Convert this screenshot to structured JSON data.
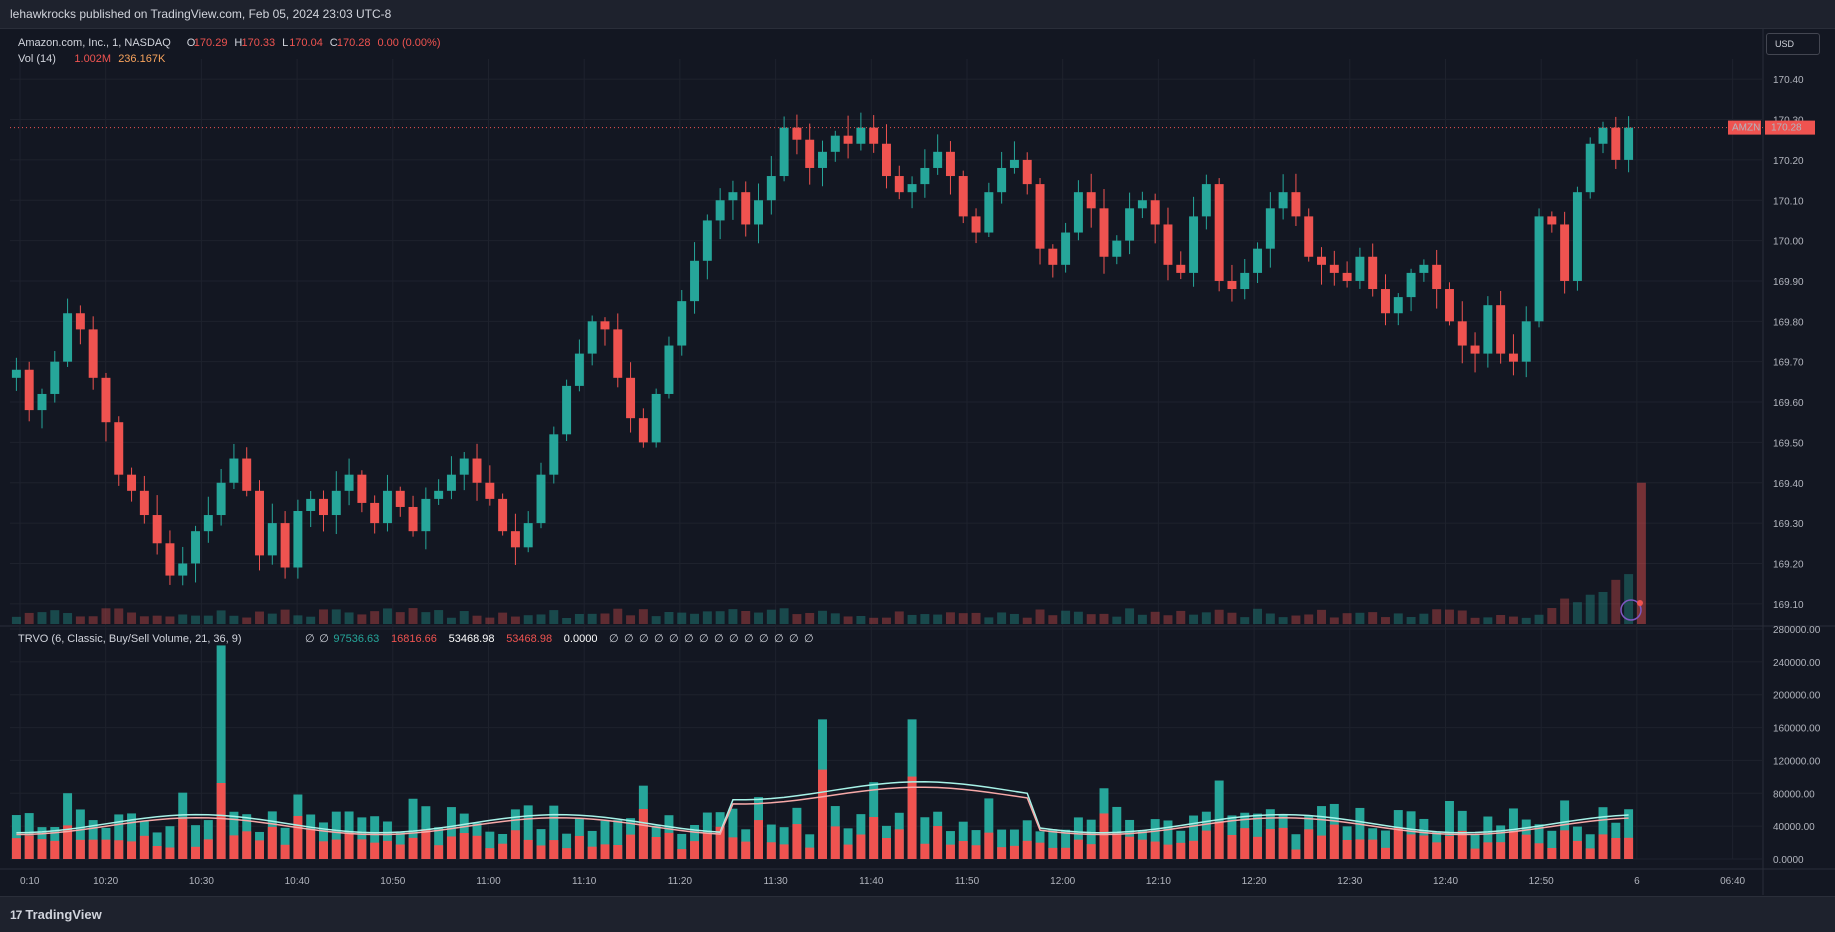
{
  "header": {
    "publish_line": "lehawkrocks published on TradingView.com, Feb 05, 2024 23:03 UTC-8"
  },
  "footer": {
    "brand": "TradingView",
    "logo": "tv-logo-icon"
  },
  "currency_button": "USD",
  "legend": {
    "symbol": "Amazon.com, Inc., 1, NASDAQ",
    "o_label": "O",
    "o_value": "170.29",
    "h_label": "H",
    "h_value": "170.33",
    "l_label": "L",
    "l_value": "170.04",
    "c_label": "C",
    "c_value": "170.28",
    "change": "0.00 (0.00%)",
    "vol_label": "Vol (14)",
    "vol_value": "1.002M",
    "vol_ma": "236.167K"
  },
  "trvo_legend": {
    "title": "TRVO (6, Classic, Buy/Sell Volume, 21, 36, 9)",
    "v1": "97536.63",
    "v2": "16816.66",
    "v3": "53468.98",
    "v4": "53468.98",
    "v5": "0.0000",
    "empty_glyph": "∅"
  },
  "price_badge": {
    "symbol": "AMZN",
    "price": "170.28"
  },
  "colors": {
    "up": "#26a69a",
    "down": "#ef5350",
    "bg": "#131722",
    "grid": "#1e222d",
    "text": "#b2b5be",
    "ma": "#f7a9a8",
    "ma2": "#a7f3e8"
  },
  "chart_data": [
    {
      "type": "candlestick",
      "title": "Amazon.com, Inc., 1, NASDAQ",
      "ylim": [
        169.05,
        170.45
      ],
      "y_ticks": [
        "170.40",
        "170.30",
        "170.20",
        "170.10",
        "170.00",
        "169.90",
        "169.80",
        "169.70",
        "169.60",
        "169.50",
        "169.40",
        "169.30",
        "169.20",
        "169.10"
      ],
      "x_ticks": [
        "0:10",
        "10:20",
        "10:30",
        "10:40",
        "10:50",
        "11:00",
        "11:10",
        "11:20",
        "11:30",
        "11:40",
        "11:50",
        "12:00",
        "12:10",
        "12:20",
        "12:30",
        "12:40",
        "12:50",
        "6",
        "06:40"
      ],
      "close_series": [
        169.68,
        169.58,
        169.62,
        169.7,
        169.82,
        169.78,
        169.66,
        169.55,
        169.42,
        169.38,
        169.32,
        169.25,
        169.17,
        169.2,
        169.28,
        169.32,
        169.4,
        169.46,
        169.38,
        169.22,
        169.3,
        169.19,
        169.33,
        169.36,
        169.32,
        169.38,
        169.42,
        169.35,
        169.3,
        169.38,
        169.34,
        169.28,
        169.36,
        169.38,
        169.42,
        169.46,
        169.4,
        169.36,
        169.28,
        169.24,
        169.3,
        169.42,
        169.52,
        169.64,
        169.72,
        169.8,
        169.78,
        169.66,
        169.56,
        169.5,
        169.62,
        169.74,
        169.85,
        169.95,
        170.05,
        170.1,
        170.12,
        170.04,
        170.1,
        170.16,
        170.28,
        170.25,
        170.18,
        170.22,
        170.26,
        170.24,
        170.28,
        170.24,
        170.16,
        170.12,
        170.14,
        170.18,
        170.22,
        170.16,
        170.06,
        170.02,
        170.12,
        170.18,
        170.2,
        170.14,
        169.98,
        169.94,
        170.02,
        170.12,
        170.08,
        169.96,
        170.0,
        170.08,
        170.1,
        170.04,
        169.94,
        169.92,
        170.06,
        170.14,
        169.9,
        169.88,
        169.92,
        169.98,
        170.08,
        170.12,
        170.06,
        169.96,
        169.94,
        169.92,
        169.9,
        169.96,
        169.88,
        169.82,
        169.86,
        169.92,
        169.94,
        169.88,
        169.8,
        169.74,
        169.72,
        169.84,
        169.72,
        169.7,
        169.8,
        170.06,
        170.04,
        169.9,
        170.12,
        170.24,
        170.28,
        170.2,
        170.28
      ]
    },
    {
      "type": "bar",
      "title": "Vol (14)",
      "spike_value": 1002000
    },
    {
      "type": "bar",
      "title": "TRVO (6, Classic, Buy/Sell Volume, 21, 36, 9)",
      "ylim": [
        0,
        280000
      ],
      "y_ticks": [
        "280000.00",
        "240000.00",
        "200000.00",
        "160000.00",
        "120000.00",
        "80000.00",
        "40000.00",
        "0.0000"
      ]
    }
  ]
}
